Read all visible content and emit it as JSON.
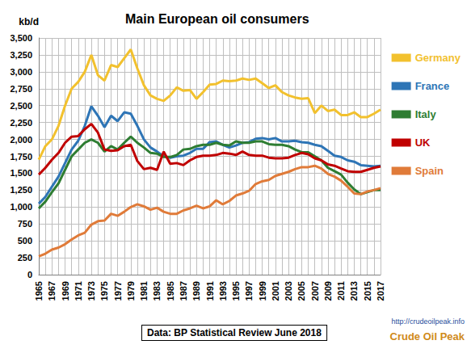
{
  "chart_data": {
    "type": "line",
    "title": "Main European oil consumers",
    "ylabel": "kb/d",
    "categories": [
      "1965",
      null,
      "1967",
      null,
      "1969",
      null,
      "1971",
      null,
      "1973",
      null,
      "1975",
      null,
      "1977",
      null,
      "1979",
      null,
      "1981",
      null,
      "1983",
      null,
      "1985",
      null,
      "1987",
      null,
      "1989",
      null,
      "1991",
      null,
      "1993",
      null,
      "1995",
      null,
      "1997",
      null,
      "1999",
      null,
      "2001",
      null,
      "2003",
      null,
      "2005",
      null,
      "2007",
      null,
      "2009",
      null,
      "2011",
      null,
      "2013",
      null,
      "2015",
      null,
      "2017"
    ],
    "series": [
      {
        "name": "Germany",
        "color": "#f2c12e",
        "values": [
          1700,
          1900,
          2000,
          2200,
          2500,
          2750,
          2850,
          3000,
          3250,
          2950,
          2870,
          3100,
          3070,
          3200,
          3330,
          3050,
          2800,
          2650,
          2600,
          2570,
          2650,
          2770,
          2720,
          2730,
          2600,
          2700,
          2810,
          2820,
          2870,
          2860,
          2870,
          2900,
          2880,
          2900,
          2830,
          2760,
          2800,
          2700,
          2650,
          2620,
          2600,
          2610,
          2390,
          2500,
          2420,
          2440,
          2360,
          2360,
          2400,
          2330,
          2330,
          2380,
          2440
        ]
      },
      {
        "name": "France",
        "color": "#2e75b6",
        "values": [
          1050,
          1150,
          1300,
          1450,
          1650,
          1850,
          1980,
          2200,
          2490,
          2350,
          2180,
          2350,
          2270,
          2400,
          2380,
          2200,
          2000,
          1880,
          1820,
          1750,
          1730,
          1750,
          1760,
          1800,
          1860,
          1860,
          1960,
          1970,
          1920,
          1880,
          1910,
          1950,
          1960,
          2010,
          2020,
          2000,
          2020,
          1970,
          1970,
          1980,
          1960,
          1950,
          1920,
          1900,
          1830,
          1760,
          1740,
          1690,
          1670,
          1620,
          1610,
          1600,
          1610
        ]
      },
      {
        "name": "Italy",
        "color": "#2e7d32",
        "values": [
          980,
          1080,
          1220,
          1350,
          1550,
          1750,
          1850,
          1950,
          2000,
          1950,
          1820,
          1900,
          1850,
          1950,
          2040,
          1950,
          1880,
          1800,
          1790,
          1740,
          1740,
          1770,
          1850,
          1860,
          1900,
          1920,
          1920,
          1950,
          1920,
          1910,
          1970,
          1950,
          1950,
          1970,
          1970,
          1930,
          1920,
          1920,
          1900,
          1850,
          1810,
          1810,
          1750,
          1690,
          1580,
          1530,
          1480,
          1360,
          1260,
          1190,
          1220,
          1250,
          1250
        ]
      },
      {
        "name": "UK",
        "color": "#c00000",
        "values": [
          1480,
          1580,
          1700,
          1800,
          1950,
          2040,
          2050,
          2150,
          2230,
          2100,
          1850,
          1830,
          1840,
          1900,
          1920,
          1680,
          1560,
          1580,
          1550,
          1820,
          1640,
          1650,
          1620,
          1690,
          1740,
          1760,
          1760,
          1770,
          1800,
          1790,
          1770,
          1820,
          1770,
          1760,
          1760,
          1730,
          1720,
          1720,
          1730,
          1770,
          1800,
          1780,
          1720,
          1690,
          1630,
          1610,
          1570,
          1530,
          1520,
          1520,
          1550,
          1580,
          1600
        ]
      },
      {
        "name": "Spain",
        "color": "#e07b39",
        "values": [
          270,
          310,
          370,
          400,
          450,
          520,
          580,
          620,
          740,
          790,
          800,
          900,
          870,
          930,
          1000,
          1040,
          1010,
          960,
          990,
          930,
          900,
          900,
          950,
          980,
          1020,
          980,
          1010,
          1100,
          1040,
          1090,
          1170,
          1200,
          1240,
          1340,
          1380,
          1400,
          1460,
          1490,
          1520,
          1560,
          1590,
          1590,
          1610,
          1570,
          1490,
          1450,
          1390,
          1300,
          1200,
          1190,
          1230,
          1250,
          1280
        ]
      }
    ],
    "ylim": [
      0,
      3500
    ],
    "yticks": [
      0,
      250,
      500,
      750,
      {
        "value": 1000,
        "label": "1,000"
      },
      {
        "value": 1250,
        "label": "1,250"
      },
      {
        "value": 1500,
        "label": "1,500"
      },
      {
        "value": 1750,
        "label": "1,750"
      },
      {
        "value": 2000,
        "label": "2,000"
      },
      {
        "value": 2250,
        "label": "2,250"
      },
      {
        "value": 2500,
        "label": "2,500"
      },
      {
        "value": 2750,
        "label": "2,750"
      },
      {
        "value": 3000,
        "label": "3,000"
      },
      {
        "value": 3250,
        "label": "3,250"
      },
      {
        "value": 3500,
        "label": "3,500"
      }
    ],
    "grid": true,
    "legend": "right",
    "annotations": [
      "Data: BP Statistical Review June 2018",
      "http://crudeoilpeak.info",
      "Crude Oil Peak"
    ]
  }
}
